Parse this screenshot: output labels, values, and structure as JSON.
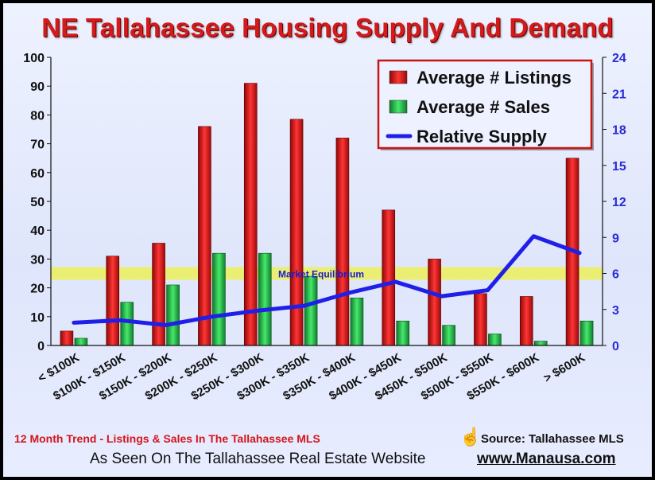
{
  "title": "NE Tallahassee Housing Supply And Demand",
  "footer": {
    "trend_note": "12 Month Trend - Listings & Sales In The Tallahassee MLS",
    "source": "Source: Tallahassee MLS",
    "seen_on": "As Seen On The Tallahassee Real Estate Website",
    "website": "www.Manausa.com"
  },
  "colors": {
    "listings": "#d81414",
    "sales": "#1fbf45",
    "supply": "#1f1fe8",
    "equilibrium": "#ecf05a",
    "title": "#d31b1b",
    "right_axis": "#2a2ad6"
  },
  "chart_data": {
    "type": "bar",
    "title": "NE Tallahassee Housing Supply And Demand",
    "categories": [
      "< $100K",
      "$100K - $150K",
      "$150K - $200K",
      "$200K - $250K",
      "$250K - $300K",
      "$300K - $350K",
      "$350K - $400K",
      "$400K - $450K",
      "$450K - $500K",
      "$500K - $550K",
      "$550K - $600K",
      "> $600K"
    ],
    "series": [
      {
        "name": "Average # Listings",
        "type": "bar",
        "axis": "left",
        "values": [
          5,
          31,
          35.5,
          76,
          91,
          78.5,
          72,
          47,
          30,
          18,
          17,
          65
        ]
      },
      {
        "name": "Average # Sales",
        "type": "bar",
        "axis": "left",
        "values": [
          2.5,
          15,
          21,
          32,
          32,
          24,
          16.5,
          8.5,
          7,
          4,
          1.5,
          8.5
        ]
      },
      {
        "name": "Relative Supply",
        "type": "line",
        "axis": "right",
        "values": [
          1.9,
          2.1,
          1.7,
          2.4,
          2.9,
          3.3,
          4.4,
          5.3,
          4.1,
          4.6,
          9.1,
          7.7
        ]
      }
    ],
    "y_left": {
      "min": 0,
      "max": 100,
      "ticks": [
        0,
        10,
        20,
        30,
        40,
        50,
        60,
        70,
        80,
        90,
        100
      ]
    },
    "y_right": {
      "min": 0,
      "max": 24,
      "ticks": [
        0,
        3,
        6,
        9,
        12,
        15,
        18,
        21,
        24
      ]
    },
    "equilibrium": {
      "label": "Market Equilibrium",
      "value": 6
    },
    "grid": false,
    "legend_position": "top-right"
  }
}
